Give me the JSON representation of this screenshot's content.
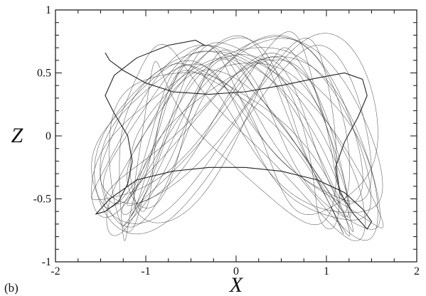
{
  "chart_data": {
    "type": "line",
    "title": "",
    "panel_label": "(b)",
    "xlabel": "X",
    "ylabel": "Z",
    "xlim": [
      -2,
      2
    ],
    "ylim": [
      -1,
      1
    ],
    "x_ticks": [
      -2,
      -1,
      0,
      1,
      2
    ],
    "y_ticks": [
      -1,
      -0.5,
      0,
      0.5,
      1
    ],
    "x_tick_labels": [
      "-2",
      "-1",
      "0",
      "1",
      "2"
    ],
    "y_tick_labels": [
      "-1",
      "-0.5",
      "0",
      "0.5",
      "1"
    ],
    "grid": false,
    "legend": "none",
    "line_color": "#222222",
    "series": [
      {
        "x": [
          -0.35,
          -0.45,
          -0.75,
          -1.1,
          -1.35,
          -1.45,
          -1.35,
          -1.2,
          -1.15,
          -1.2,
          -1.3,
          -1.45,
          -1.55,
          -1.4,
          -1.1,
          -0.7,
          -0.3,
          0.1,
          0.5,
          0.9,
          1.2,
          1.4,
          1.5,
          1.45,
          1.3,
          1.15,
          1.1,
          1.2,
          1.35,
          1.45,
          1.4,
          1.2,
          0.9,
          0.5,
          0.1,
          -0.3,
          -0.7,
          -1.0,
          -1.25,
          -1.4,
          -1.45
        ],
        "y": [
          0.72,
          0.76,
          0.72,
          0.62,
          0.48,
          0.32,
          0.18,
          0.0,
          -0.2,
          -0.38,
          -0.52,
          -0.6,
          -0.62,
          -0.5,
          -0.35,
          -0.28,
          -0.25,
          -0.25,
          -0.28,
          -0.35,
          -0.45,
          -0.58,
          -0.68,
          -0.74,
          -0.62,
          -0.45,
          -0.25,
          -0.05,
          0.15,
          0.32,
          0.45,
          0.5,
          0.46,
          0.4,
          0.35,
          0.33,
          0.35,
          0.42,
          0.52,
          0.6,
          0.66
        ]
      }
    ]
  }
}
